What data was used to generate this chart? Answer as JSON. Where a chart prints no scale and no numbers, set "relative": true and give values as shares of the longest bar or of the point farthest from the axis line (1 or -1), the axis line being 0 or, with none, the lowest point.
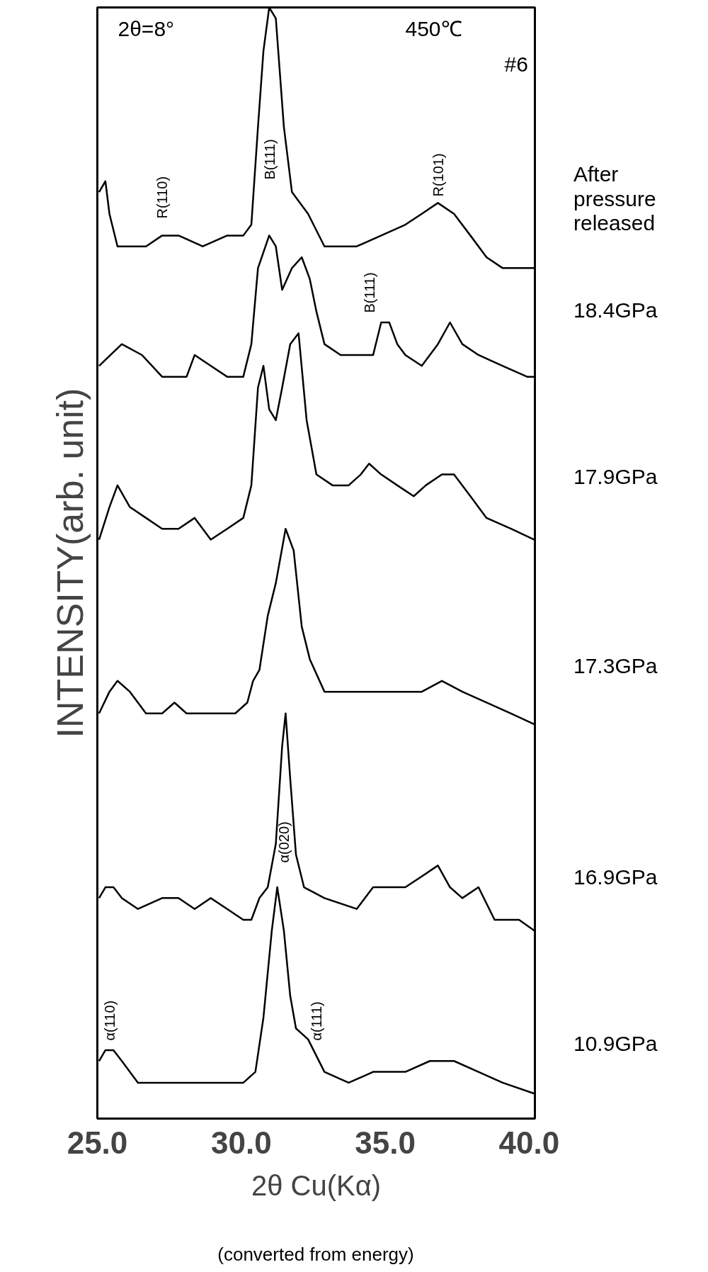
{
  "chart_data": {
    "type": "line",
    "relative": true,
    "xlabel": "2θ Cu(Kα)",
    "ylabel": "INTENSITY(arb. unit)",
    "xlim": [
      25,
      40.2
    ],
    "xticks": [
      {
        "value": 25,
        "label": "25.0"
      },
      {
        "value": 30,
        "label": "30.0"
      },
      {
        "value": 35,
        "label": "35.0"
      },
      {
        "value": 40,
        "label": "40.0"
      }
    ],
    "marker": "none",
    "line_style": "solid",
    "series": [
      {
        "name": "After pressure released",
        "color": "#000000",
        "x": [
          25.06,
          25.28,
          25.42,
          25.7,
          26.13,
          26.69,
          27.25,
          27.82,
          28.66,
          29.51,
          30.07,
          30.35,
          30.58,
          30.77,
          30.97,
          31.2,
          31.48,
          31.76,
          32.32,
          32.89,
          33.45,
          34.01,
          34.86,
          35.7,
          36.27,
          36.83,
          37.39,
          37.96,
          38.52,
          39.08,
          39.65,
          40.18
        ],
        "values": [
          0.83,
          0.84,
          0.81,
          0.78,
          0.78,
          0.78,
          0.79,
          0.79,
          0.78,
          0.79,
          0.79,
          0.8,
          0.89,
          0.96,
          1,
          0.99,
          0.89,
          0.83,
          0.81,
          0.78,
          0.78,
          0.78,
          0.79,
          0.8,
          0.81,
          0.82,
          0.81,
          0.79,
          0.77,
          0.76,
          0.76,
          0.76
        ]
      },
      {
        "name": "18.4GPa",
        "color": "#000000",
        "x": [
          25.06,
          25.85,
          26.55,
          27.25,
          28.1,
          28.38,
          28.94,
          29.51,
          30.07,
          30.35,
          30.58,
          30.97,
          31.2,
          31.42,
          31.76,
          32.1,
          32.38,
          32.61,
          32.89,
          33.45,
          34.01,
          34.58,
          34.86,
          35.14,
          35.42,
          35.7,
          36.27,
          36.83,
          37.25,
          37.68,
          38.24,
          39.08,
          39.93,
          40.18
        ],
        "values": [
          0.67,
          0.69,
          0.68,
          0.66,
          0.66,
          0.68,
          0.67,
          0.66,
          0.66,
          0.69,
          0.76,
          0.79,
          0.78,
          0.74,
          0.76,
          0.77,
          0.75,
          0.72,
          0.69,
          0.68,
          0.68,
          0.68,
          0.71,
          0.71,
          0.69,
          0.68,
          0.67,
          0.69,
          0.71,
          0.69,
          0.68,
          0.67,
          0.66,
          0.66
        ]
      },
      {
        "name": "17.9GPa",
        "color": "#000000",
        "x": [
          25.06,
          25.42,
          25.7,
          26.13,
          26.69,
          27.25,
          27.82,
          28.38,
          28.94,
          29.51,
          30.07,
          30.35,
          30.58,
          30.77,
          30.97,
          31.2,
          31.42,
          31.7,
          31.99,
          32.27,
          32.61,
          33.17,
          33.73,
          34.15,
          34.44,
          34.86,
          35.42,
          35.99,
          36.41,
          36.97,
          37.39,
          37.96,
          38.52,
          39.37,
          40.18
        ],
        "values": [
          0.51,
          0.54,
          0.56,
          0.54,
          0.53,
          0.52,
          0.52,
          0.53,
          0.51,
          0.52,
          0.53,
          0.56,
          0.65,
          0.67,
          0.63,
          0.62,
          0.65,
          0.69,
          0.7,
          0.62,
          0.57,
          0.56,
          0.56,
          0.57,
          0.58,
          0.57,
          0.56,
          0.55,
          0.56,
          0.57,
          0.57,
          0.55,
          0.53,
          0.52,
          0.51
        ]
      },
      {
        "name": "17.3GPa",
        "color": "#000000",
        "x": [
          25.06,
          25.42,
          25.7,
          26.13,
          26.69,
          27.25,
          27.68,
          28.1,
          28.66,
          29.23,
          29.79,
          30.21,
          30.41,
          30.63,
          30.92,
          31.2,
          31.54,
          31.82,
          32.1,
          32.38,
          32.89,
          33.73,
          34.58,
          35.42,
          36.27,
          36.97,
          37.68,
          38.52,
          39.37,
          40.18
        ],
        "values": [
          0.35,
          0.37,
          0.38,
          0.37,
          0.35,
          0.35,
          0.36,
          0.35,
          0.35,
          0.35,
          0.35,
          0.36,
          0.38,
          0.39,
          0.44,
          0.47,
          0.52,
          0.5,
          0.43,
          0.4,
          0.37,
          0.37,
          0.37,
          0.37,
          0.37,
          0.38,
          0.37,
          0.36,
          0.35,
          0.34
        ]
      },
      {
        "name": "16.9GPa",
        "color": "#000000",
        "x": [
          25.06,
          25.28,
          25.56,
          25.85,
          26.41,
          27.25,
          27.82,
          28.38,
          28.94,
          29.51,
          30.07,
          30.35,
          30.63,
          30.92,
          31.2,
          31.42,
          31.54,
          31.7,
          31.9,
          32.18,
          32.89,
          34.01,
          34.58,
          35.14,
          35.7,
          36.27,
          36.83,
          37.25,
          37.68,
          38.24,
          38.8,
          39.65,
          40.18
        ],
        "values": [
          0.18,
          0.19,
          0.19,
          0.18,
          0.17,
          0.18,
          0.18,
          0.17,
          0.18,
          0.17,
          0.16,
          0.16,
          0.18,
          0.19,
          0.23,
          0.32,
          0.35,
          0.29,
          0.22,
          0.19,
          0.18,
          0.17,
          0.19,
          0.19,
          0.19,
          0.2,
          0.21,
          0.19,
          0.18,
          0.19,
          0.16,
          0.16,
          0.15
        ]
      },
      {
        "name": "10.9GPa",
        "color": "#000000",
        "x": [
          25.06,
          25.28,
          25.56,
          25.85,
          26.41,
          26.97,
          27.54,
          28.38,
          29.23,
          30.07,
          30.49,
          30.77,
          31.06,
          31.25,
          31.48,
          31.7,
          31.9,
          32.32,
          32.89,
          33.73,
          34.58,
          35.7,
          36.55,
          37.39,
          38.24,
          39.08,
          40.18
        ],
        "values": [
          0.03,
          0.04,
          0.04,
          0.03,
          0.01,
          0.01,
          0.01,
          0.01,
          0.01,
          0.01,
          0.02,
          0.07,
          0.15,
          0.19,
          0.15,
          0.09,
          0.06,
          0.05,
          0.02,
          0.01,
          0.02,
          0.02,
          0.03,
          0.03,
          0.02,
          0.01,
          0
        ]
      }
    ],
    "annotations": [
      "2θ=8°",
      "450℃",
      "#6",
      "(converted from energy)",
      "R(110)",
      "B(111)",
      "R(101)",
      "B(111)",
      "α(020)",
      "α(110)",
      "α(111)"
    ]
  }
}
